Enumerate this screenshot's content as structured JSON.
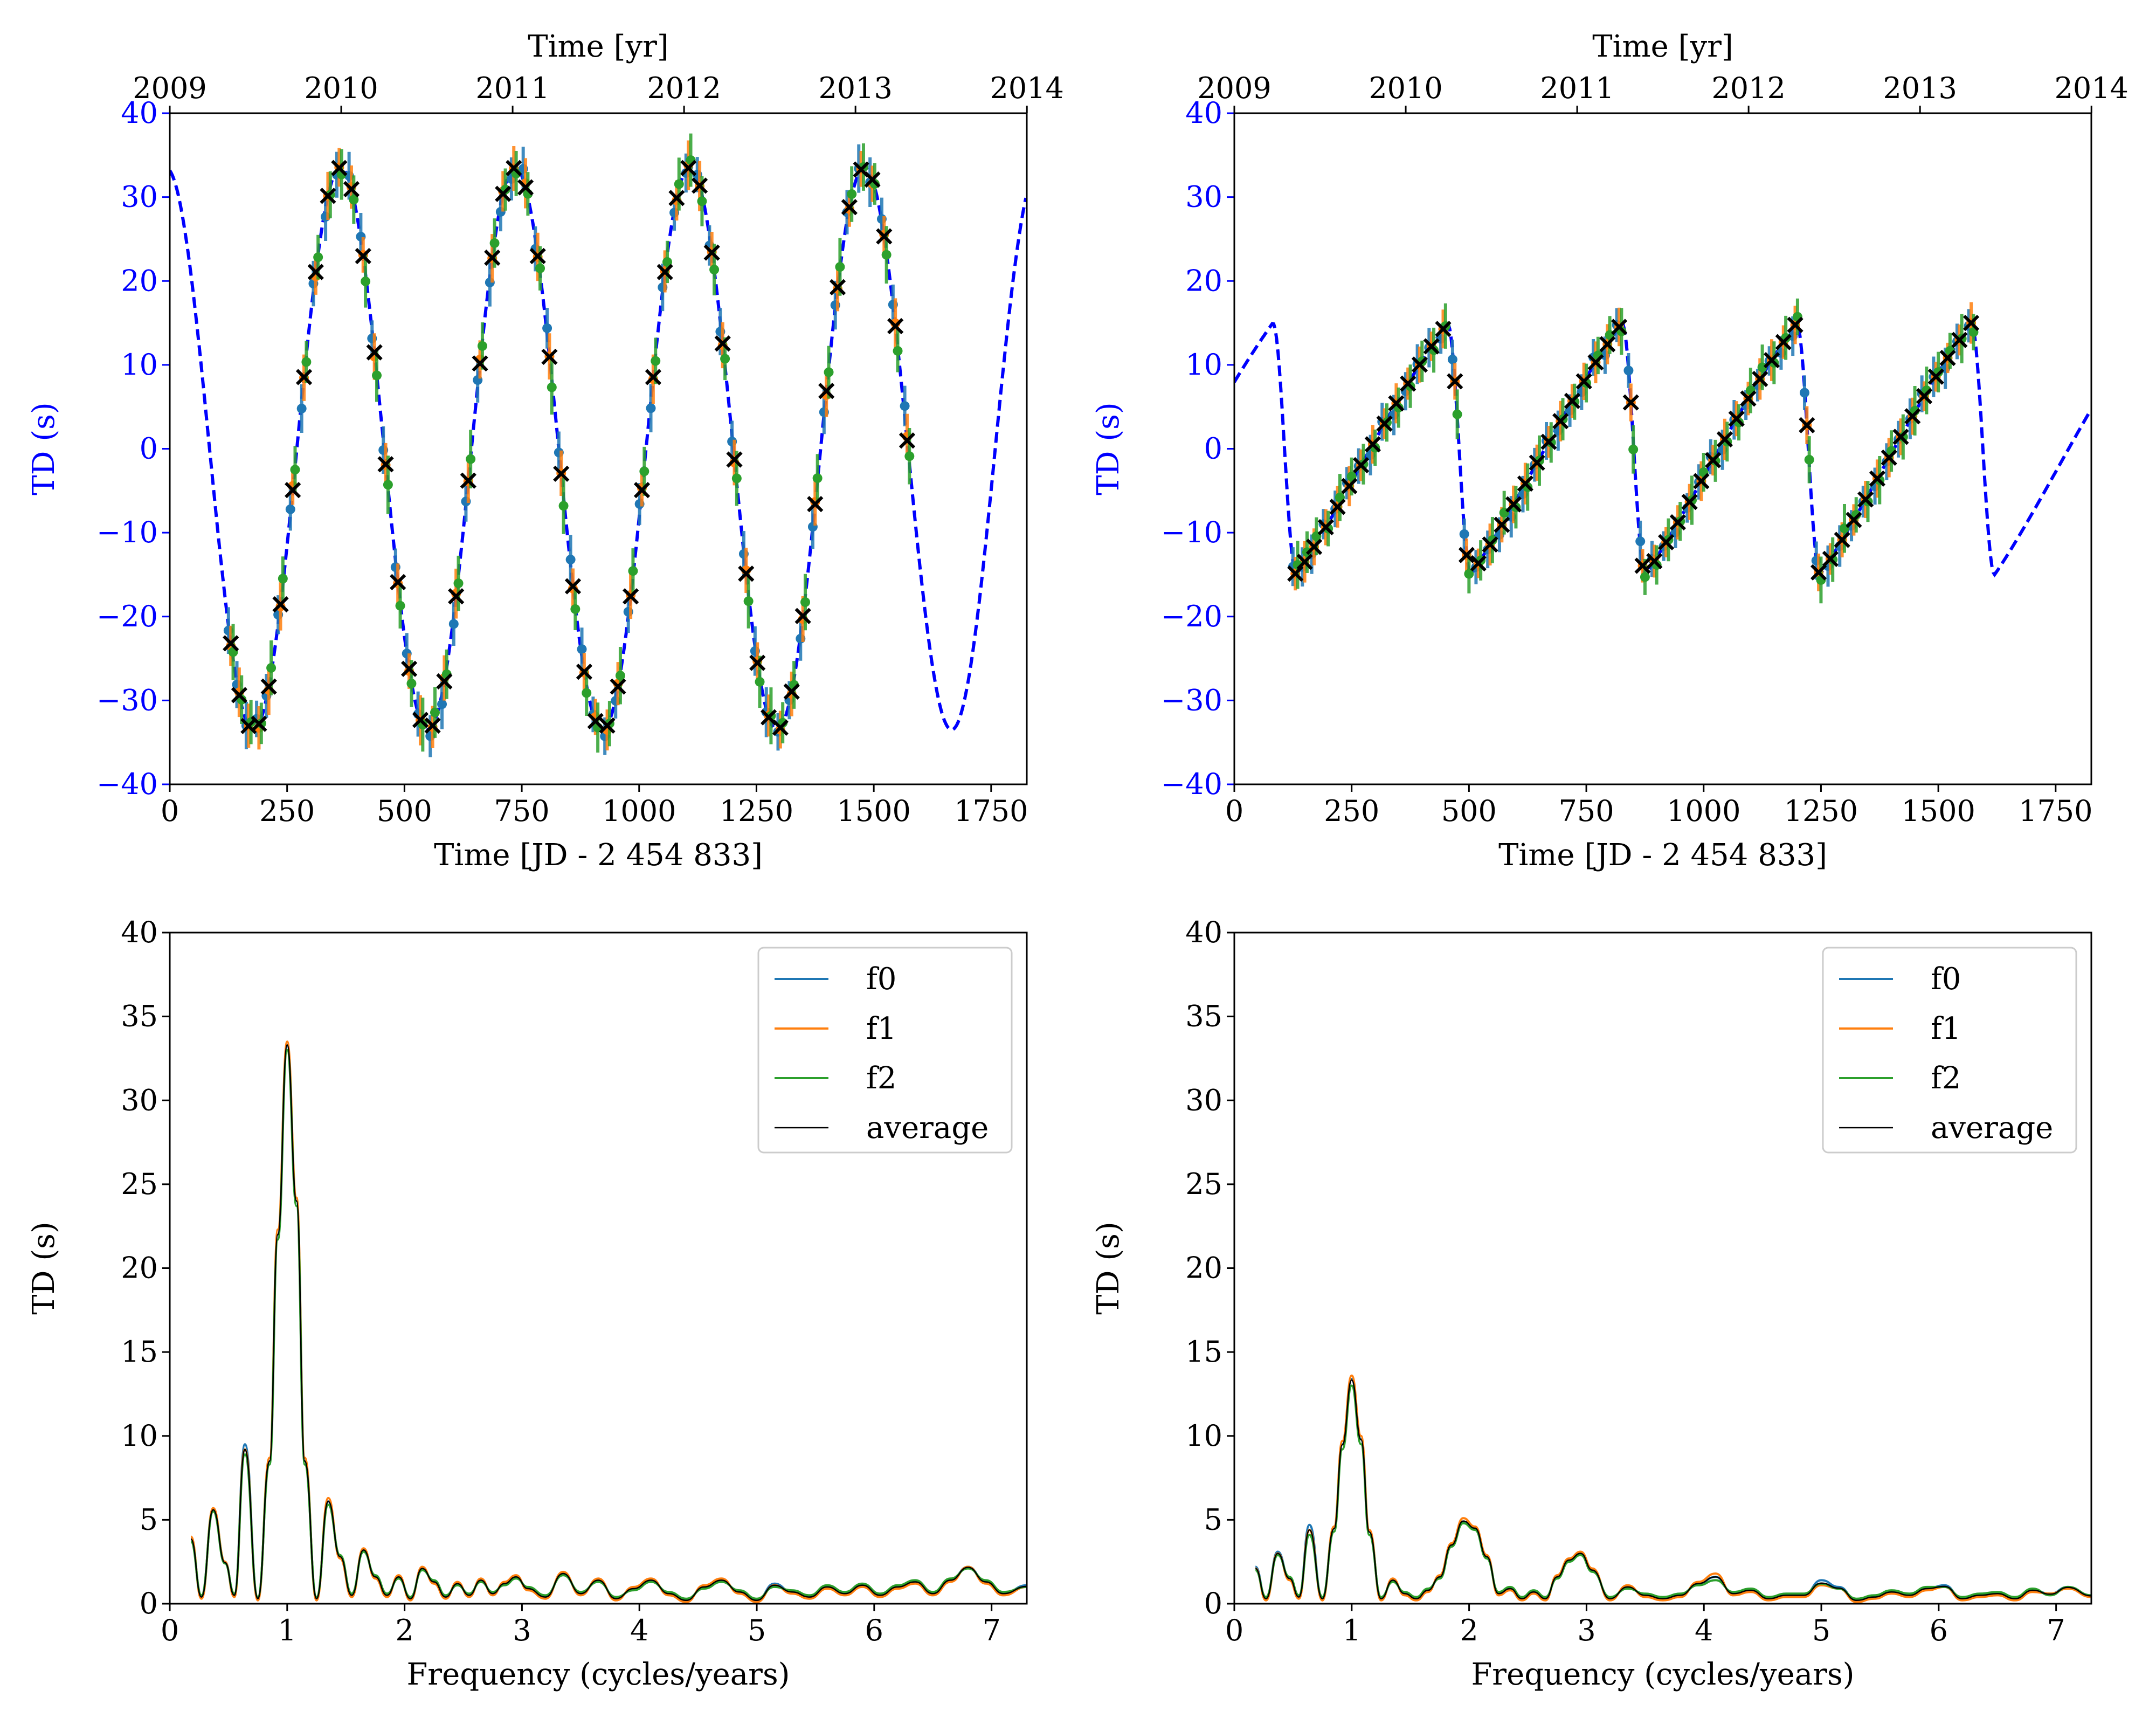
{
  "figure": {
    "colors": {
      "model": "#0000ff",
      "f0": "#1f77b4",
      "f1": "#ff7f0e",
      "f2": "#2ca02c",
      "average": "#000000",
      "marker": "#000000"
    }
  },
  "chart_data": [
    {
      "id": "td-time-left",
      "type": "scatter",
      "xlabel": "Time [JD - 2 454 833]",
      "ylabel": "TD (s)",
      "top_xlabel": "Time [yr]",
      "xlim": [
        0,
        1826
      ],
      "ylim": [
        -40,
        40
      ],
      "xticks": [
        "0",
        "250",
        "500",
        "750",
        "1000",
        "1250",
        "1500",
        "1750"
      ],
      "yticks": [
        "−40",
        "−30",
        "−20",
        "−10",
        "0",
        "10",
        "20",
        "30",
        "40"
      ],
      "top_ticks": [
        "2009",
        "2010",
        "2011",
        "2012",
        "2013",
        "2014"
      ],
      "model": {
        "style": "dashed",
        "amplitude": 33.5,
        "period": 372,
        "phase_deg": 98,
        "x_range": [
          0,
          1826
        ]
      },
      "sample_times": [
        130,
        148,
        168,
        190,
        211,
        236,
        262,
        286,
        311,
        337,
        361,
        387,
        412,
        436,
        460,
        486,
        510,
        534,
        560,
        585,
        610,
        636,
        661,
        687,
        710,
        733,
        758,
        784,
        809,
        834,
        859,
        883,
        907,
        932,
        955,
        982,
        1006,
        1030,
        1055,
        1080,
        1105,
        1129,
        1155,
        1178,
        1203,
        1228,
        1252,
        1276,
        1301,
        1325,
        1349,
        1375,
        1399,
        1423,
        1448,
        1473,
        1497,
        1522,
        1546,
        1571
      ],
      "series": [
        {
          "name": "f0",
          "y_offset": 1.0,
          "error": 3.0
        },
        {
          "name": "f1",
          "y_offset": 0.4,
          "error": 3.0
        },
        {
          "name": "f2",
          "y_offset": -0.8,
          "error": 3.5
        },
        {
          "name": "average",
          "marker": "x",
          "y_offset": 0.0
        }
      ]
    },
    {
      "id": "td-time-right",
      "type": "scatter",
      "xlabel": "Time [JD - 2 454 833]",
      "ylabel": "TD (s)",
      "top_xlabel": "Time [yr]",
      "xlim": [
        0,
        1826
      ],
      "ylim": [
        -40,
        40
      ],
      "xticks": [
        "0",
        "250",
        "500",
        "750",
        "1000",
        "1250",
        "1500",
        "1750"
      ],
      "yticks": [
        "−40",
        "−30",
        "−20",
        "−10",
        "0",
        "10",
        "20",
        "30",
        "40"
      ],
      "top_ticks": [
        "2009",
        "2010",
        "2011",
        "2012",
        "2013",
        "2014"
      ],
      "model": {
        "style": "dashed",
        "shape": "eccentric",
        "amplitude": 15,
        "period": 372,
        "x_range": [
          0,
          1826
        ]
      },
      "sample_times": [
        130,
        150,
        170,
        195,
        220,
        245,
        270,
        295,
        320,
        345,
        370,
        395,
        420,
        445,
        470,
        495,
        520,
        545,
        570,
        595,
        620,
        645,
        670,
        695,
        720,
        745,
        770,
        795,
        820,
        845,
        870,
        895,
        920,
        945,
        970,
        995,
        1020,
        1045,
        1070,
        1095,
        1120,
        1145,
        1170,
        1195,
        1220,
        1245,
        1270,
        1295,
        1320,
        1345,
        1370,
        1395,
        1420,
        1445,
        1470,
        1495,
        1520,
        1545,
        1570
      ],
      "series": [
        {
          "name": "f0",
          "y_offset": 0.8,
          "error": 2.5
        },
        {
          "name": "f1",
          "y_offset": 0.0,
          "error": 2.5
        },
        {
          "name": "f2",
          "y_offset": -0.8,
          "error": 3.0
        },
        {
          "name": "average",
          "marker": "x",
          "y_offset": 0.0
        }
      ]
    },
    {
      "id": "spectrum-left",
      "type": "line",
      "xlabel": "Frequency (cycles/years)",
      "ylabel": "TD (s)",
      "xlim": [
        0,
        7.3
      ],
      "ylim": [
        0,
        40
      ],
      "xticks": [
        "0",
        "1",
        "2",
        "3",
        "4",
        "5",
        "6",
        "7"
      ],
      "yticks": [
        "0",
        "5",
        "10",
        "15",
        "20",
        "25",
        "30",
        "35",
        "40"
      ],
      "legend_position": "upper right",
      "series": [
        {
          "name": "f0",
          "color": "#1f77b4"
        },
        {
          "name": "f1",
          "color": "#ff7f0e"
        },
        {
          "name": "f2",
          "color": "#2ca02c"
        },
        {
          "name": "average",
          "color": "#000000"
        }
      ],
      "x": [
        0.18,
        0.27,
        0.37,
        0.47,
        0.55,
        0.64,
        0.75,
        0.85,
        0.92,
        1.0,
        1.08,
        1.15,
        1.25,
        1.35,
        1.45,
        1.55,
        1.65,
        1.75,
        1.85,
        1.95,
        2.05,
        2.15,
        2.25,
        2.35,
        2.45,
        2.55,
        2.65,
        2.75,
        2.85,
        2.95,
        3.05,
        3.2,
        3.35,
        3.5,
        3.65,
        3.8,
        3.95,
        4.1,
        4.25,
        4.4,
        4.55,
        4.7,
        4.85,
        5.0,
        5.15,
        5.3,
        5.45,
        5.6,
        5.75,
        5.9,
        6.05,
        6.2,
        6.35,
        6.5,
        6.65,
        6.8,
        6.95,
        7.1,
        7.3
      ],
      "values_by_series": {
        "f0": [
          3.9,
          0.4,
          5.6,
          2.5,
          0.5,
          9.5,
          0.3,
          8.5,
          22.0,
          33.3,
          24.0,
          8.5,
          0.3,
          6.1,
          2.8,
          0.5,
          3.2,
          1.6,
          0.5,
          1.6,
          0.3,
          2.1,
          1.3,
          0.4,
          1.2,
          0.5,
          1.4,
          0.6,
          1.2,
          1.6,
          0.9,
          0.4,
          1.8,
          0.6,
          1.4,
          0.3,
          0.9,
          1.4,
          0.6,
          0.2,
          1.0,
          1.4,
          0.7,
          0.2,
          1.2,
          0.7,
          0.4,
          1.0,
          0.6,
          1.1,
          0.5,
          1.0,
          1.3,
          0.6,
          1.4,
          2.2,
          1.3,
          0.6,
          1.1
        ],
        "f1": [
          4.0,
          0.3,
          5.7,
          2.5,
          0.4,
          9.2,
          0.2,
          8.7,
          22.3,
          33.5,
          24.2,
          8.7,
          0.2,
          6.3,
          2.7,
          0.4,
          3.3,
          1.5,
          0.4,
          1.7,
          0.2,
          2.2,
          1.2,
          0.3,
          1.3,
          0.4,
          1.5,
          0.5,
          1.3,
          1.7,
          0.8,
          0.3,
          1.9,
          0.5,
          1.5,
          0.2,
          1.0,
          1.5,
          0.5,
          0.1,
          1.1,
          1.5,
          0.6,
          0.1,
          1.1,
          0.6,
          0.3,
          0.9,
          0.5,
          1.0,
          0.4,
          0.9,
          1.2,
          0.5,
          1.3,
          2.2,
          1.2,
          0.5,
          1.0
        ],
        "f2": [
          3.7,
          0.5,
          5.5,
          2.4,
          0.6,
          8.9,
          0.4,
          8.3,
          21.7,
          33.0,
          23.7,
          8.3,
          0.4,
          5.9,
          2.9,
          0.6,
          3.1,
          1.7,
          0.6,
          1.5,
          0.4,
          2.0,
          1.4,
          0.5,
          1.1,
          0.6,
          1.3,
          0.7,
          1.1,
          1.5,
          1.0,
          0.5,
          1.7,
          0.7,
          1.3,
          0.4,
          0.8,
          1.3,
          0.7,
          0.3,
          0.9,
          1.3,
          0.8,
          0.3,
          1.0,
          0.8,
          0.5,
          1.1,
          0.7,
          1.2,
          0.6,
          1.1,
          1.4,
          0.7,
          1.5,
          2.1,
          1.4,
          0.7,
          1.0
        ],
        "average": [
          3.85,
          0.4,
          5.6,
          2.45,
          0.5,
          9.2,
          0.3,
          8.5,
          22.0,
          33.3,
          24.0,
          8.5,
          0.3,
          6.1,
          2.8,
          0.5,
          3.2,
          1.6,
          0.5,
          1.6,
          0.3,
          2.1,
          1.3,
          0.4,
          1.2,
          0.5,
          1.4,
          0.6,
          1.2,
          1.6,
          0.9,
          0.4,
          1.8,
          0.6,
          1.4,
          0.3,
          0.9,
          1.4,
          0.6,
          0.2,
          1.0,
          1.4,
          0.7,
          0.2,
          1.1,
          0.7,
          0.4,
          1.0,
          0.6,
          1.1,
          0.5,
          1.0,
          1.3,
          0.6,
          1.4,
          2.17,
          1.3,
          0.6,
          1.03
        ]
      }
    },
    {
      "id": "spectrum-right",
      "type": "line",
      "xlabel": "Frequency (cycles/years)",
      "ylabel": "TD (s)",
      "xlim": [
        0,
        7.3
      ],
      "ylim": [
        0,
        40
      ],
      "xticks": [
        "0",
        "1",
        "2",
        "3",
        "4",
        "5",
        "6",
        "7"
      ],
      "yticks": [
        "0",
        "5",
        "10",
        "15",
        "20",
        "25",
        "30",
        "35",
        "40"
      ],
      "legend_position": "upper right",
      "series": [
        {
          "name": "f0",
          "color": "#1f77b4"
        },
        {
          "name": "f1",
          "color": "#ff7f0e"
        },
        {
          "name": "f2",
          "color": "#2ca02c"
        },
        {
          "name": "average",
          "color": "#000000"
        }
      ],
      "x": [
        0.18,
        0.27,
        0.37,
        0.47,
        0.55,
        0.64,
        0.75,
        0.85,
        0.92,
        1.0,
        1.08,
        1.15,
        1.25,
        1.35,
        1.45,
        1.55,
        1.65,
        1.75,
        1.85,
        1.95,
        2.05,
        2.15,
        2.25,
        2.35,
        2.45,
        2.55,
        2.65,
        2.75,
        2.85,
        2.95,
        3.05,
        3.2,
        3.35,
        3.5,
        3.65,
        3.8,
        3.95,
        4.1,
        4.25,
        4.4,
        4.55,
        4.7,
        4.85,
        5.0,
        5.15,
        5.3,
        5.45,
        5.6,
        5.75,
        5.9,
        6.05,
        6.2,
        6.35,
        6.5,
        6.65,
        6.8,
        6.95,
        7.1,
        7.3
      ],
      "values_by_series": {
        "f0": [
          2.2,
          0.3,
          3.1,
          1.5,
          0.4,
          4.7,
          0.3,
          4.5,
          9.5,
          13.4,
          9.8,
          4.3,
          0.3,
          1.4,
          0.6,
          0.3,
          0.8,
          1.6,
          3.5,
          4.9,
          4.5,
          2.8,
          0.6,
          0.9,
          0.3,
          0.7,
          0.3,
          1.6,
          2.6,
          3.0,
          2.0,
          0.3,
          1.0,
          0.5,
          0.3,
          0.5,
          1.2,
          1.6,
          0.6,
          0.8,
          0.3,
          0.5,
          0.5,
          1.4,
          1.0,
          0.2,
          0.4,
          0.7,
          0.5,
          0.9,
          1.1,
          0.3,
          0.5,
          0.6,
          0.3,
          0.8,
          0.6,
          1.0,
          0.5
        ],
        "f1": [
          2.1,
          0.2,
          3.0,
          1.4,
          0.3,
          4.4,
          0.2,
          4.6,
          9.7,
          13.6,
          10.0,
          4.4,
          0.2,
          1.5,
          0.5,
          0.2,
          0.7,
          1.7,
          3.6,
          5.1,
          4.6,
          2.9,
          0.5,
          0.8,
          0.2,
          0.6,
          0.2,
          1.7,
          2.7,
          3.1,
          2.1,
          0.2,
          1.1,
          0.4,
          0.2,
          0.4,
          1.3,
          1.8,
          0.5,
          0.7,
          0.2,
          0.4,
          0.4,
          1.1,
          0.9,
          0.1,
          0.3,
          0.6,
          0.4,
          0.8,
          1.0,
          0.2,
          0.4,
          0.5,
          0.2,
          0.7,
          0.6,
          0.9,
          0.4
        ],
        "f2": [
          2.0,
          0.4,
          2.9,
          1.6,
          0.5,
          4.1,
          0.4,
          4.3,
          9.2,
          13.0,
          9.5,
          4.1,
          0.4,
          1.3,
          0.7,
          0.4,
          0.9,
          1.5,
          3.4,
          4.8,
          4.4,
          2.7,
          0.7,
          1.0,
          0.4,
          0.8,
          0.4,
          1.5,
          2.5,
          2.9,
          1.9,
          0.4,
          0.9,
          0.6,
          0.4,
          0.6,
          1.1,
          1.4,
          0.7,
          0.9,
          0.4,
          0.6,
          0.6,
          1.2,
          0.9,
          0.3,
          0.5,
          0.8,
          0.6,
          1.0,
          1.0,
          0.4,
          0.6,
          0.7,
          0.4,
          0.9,
          0.5,
          1.0,
          0.5
        ],
        "average": [
          2.1,
          0.3,
          3.0,
          1.5,
          0.4,
          4.4,
          0.3,
          4.47,
          9.47,
          13.33,
          9.77,
          4.27,
          0.3,
          1.4,
          0.6,
          0.3,
          0.8,
          1.6,
          3.5,
          4.93,
          4.5,
          2.8,
          0.6,
          0.9,
          0.3,
          0.7,
          0.3,
          1.6,
          2.6,
          3.0,
          2.0,
          0.3,
          1.0,
          0.5,
          0.3,
          0.5,
          1.2,
          1.6,
          0.6,
          0.8,
          0.3,
          0.5,
          0.5,
          1.23,
          0.93,
          0.2,
          0.4,
          0.7,
          0.5,
          0.9,
          1.03,
          0.3,
          0.5,
          0.6,
          0.3,
          0.8,
          0.57,
          0.97,
          0.47
        ]
      }
    }
  ]
}
